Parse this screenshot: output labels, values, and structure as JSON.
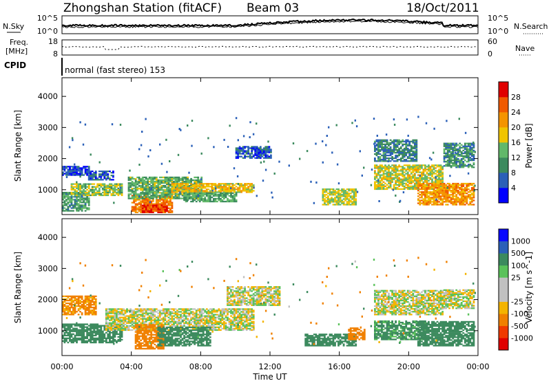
{
  "header": {
    "station": "Zhongshan Station (fitACF)",
    "beam": "Beam 03",
    "date": "18/Oct/2011"
  },
  "panels": {
    "nsky_label": "N.Sky",
    "nsearch_label": "N.Search",
    "freq_label_1": "Freq.",
    "freq_label_2": "[MHz]",
    "nave_label": "Nave",
    "cpid_label": "CPID",
    "cpid_value": "normal (fast stereo) 153",
    "nsky_tick_top": "10^5",
    "nsky_tick_bottom": "10^0",
    "freq_tick_top": "18",
    "freq_tick_bottom": "8",
    "nave_tick_top": "60",
    "nave_tick_bottom": "0"
  },
  "colors": {
    "power_scale": [
      "#0000ff",
      "#2b60b8",
      "#3c8a5e",
      "#62b86a",
      "#f0c400",
      "#f49400",
      "#f05a00",
      "#e00000"
    ],
    "velocity_scale": [
      "#0a0aff",
      "#2b60b8",
      "#3c8a5e",
      "#5ac25a",
      "#c0c0c0",
      "#c0c0c0",
      "#f4b400",
      "#f08000",
      "#f03a00",
      "#e00000"
    ]
  },
  "chart_data": [
    {
      "type": "heatmap",
      "name": "power",
      "xlabel": "",
      "ylabel": "Slant Range [km]",
      "x_ticks": [
        "00:00",
        "04:00",
        "08:00",
        "12:00",
        "16:00",
        "20:00",
        "00:00"
      ],
      "y_ticks": [
        1000,
        2000,
        3000,
        4000
      ],
      "ylim": [
        200,
        4600
      ],
      "xlim_hours": [
        0,
        24
      ],
      "colorbar_label": "Power [dB]",
      "colorbar_ticks": [
        4,
        8,
        12,
        16,
        20,
        24,
        28
      ],
      "colorbar_range": [
        0,
        30
      ],
      "regions": [
        {
          "t0": 0.0,
          "t1": 1.6,
          "r0": 1450,
          "r1": 1750,
          "value": 5
        },
        {
          "t0": 0.0,
          "t1": 1.6,
          "r0": 300,
          "r1": 900,
          "value": 11
        },
        {
          "t0": 0.5,
          "t1": 3.5,
          "r0": 800,
          "r1": 1200,
          "value": 15
        },
        {
          "t0": 1.5,
          "t1": 3.0,
          "r0": 1300,
          "r1": 1600,
          "value": 6
        },
        {
          "t0": 4.0,
          "t1": 6.3,
          "r0": 250,
          "r1": 800,
          "value": 24
        },
        {
          "t0": 4.6,
          "t1": 6.0,
          "r0": 250,
          "r1": 500,
          "value": 28
        },
        {
          "t0": 3.8,
          "t1": 8.0,
          "r0": 700,
          "r1": 1400,
          "value": 13
        },
        {
          "t0": 6.3,
          "t1": 11.0,
          "r0": 900,
          "r1": 1200,
          "value": 19
        },
        {
          "t0": 7.0,
          "t1": 10.0,
          "r0": 600,
          "r1": 900,
          "value": 12
        },
        {
          "t0": 10.0,
          "t1": 12.0,
          "r0": 2000,
          "r1": 2400,
          "value": 6
        },
        {
          "t0": 15.0,
          "t1": 17.0,
          "r0": 500,
          "r1": 1000,
          "value": 16
        },
        {
          "t0": 18.0,
          "t1": 22.0,
          "r0": 1000,
          "r1": 1800,
          "value": 17
        },
        {
          "t0": 18.0,
          "t1": 20.5,
          "r0": 1900,
          "r1": 2600,
          "value": 9
        },
        {
          "t0": 20.5,
          "t1": 23.8,
          "r0": 500,
          "r1": 1200,
          "value": 22
        },
        {
          "t0": 22.0,
          "t1": 23.8,
          "r0": 1700,
          "r1": 2500,
          "value": 10
        }
      ]
    },
    {
      "type": "heatmap",
      "name": "velocity",
      "xlabel": "Time UT",
      "ylabel": "Slant Range [km]",
      "x_ticks": [
        "00:00",
        "04:00",
        "08:00",
        "12:00",
        "16:00",
        "20:00",
        "00:00"
      ],
      "y_ticks": [
        1000,
        2000,
        3000,
        4000
      ],
      "ylim": [
        200,
        4600
      ],
      "xlim_hours": [
        0,
        24
      ],
      "colorbar_label": "Velocity [m s^-1]",
      "colorbar_ticks": [
        1000,
        500,
        100,
        25,
        -25,
        -100,
        -500,
        -1000
      ],
      "regions": [
        {
          "t0": 0.0,
          "t1": 2.0,
          "r0": 1500,
          "r1": 2100,
          "value": -150
        },
        {
          "t0": 0.0,
          "t1": 3.5,
          "r0": 600,
          "r1": 1200,
          "value": 200
        },
        {
          "t0": 2.5,
          "t1": 11.0,
          "r0": 1000,
          "r1": 1700,
          "value": 0
        },
        {
          "t0": 4.2,
          "t1": 5.8,
          "r0": 400,
          "r1": 1200,
          "value": -400
        },
        {
          "t0": 5.5,
          "t1": 8.5,
          "r0": 500,
          "r1": 1100,
          "value": 300
        },
        {
          "t0": 9.5,
          "t1": 12.5,
          "r0": 1800,
          "r1": 2400,
          "value": 0
        },
        {
          "t0": 14.0,
          "t1": 17.0,
          "r0": 500,
          "r1": 900,
          "value": 250
        },
        {
          "t0": 16.5,
          "t1": 17.5,
          "r0": 700,
          "r1": 1100,
          "value": -300
        },
        {
          "t0": 18.0,
          "t1": 22.0,
          "r0": 1500,
          "r1": 2300,
          "value": 0
        },
        {
          "t0": 18.0,
          "t1": 21.0,
          "r0": 700,
          "r1": 1300,
          "value": 150
        },
        {
          "t0": 20.5,
          "t1": 23.8,
          "r0": 500,
          "r1": 1300,
          "value": 300
        },
        {
          "t0": 22.0,
          "t1": 23.8,
          "r0": 1700,
          "r1": 2300,
          "value": 0
        }
      ]
    }
  ]
}
